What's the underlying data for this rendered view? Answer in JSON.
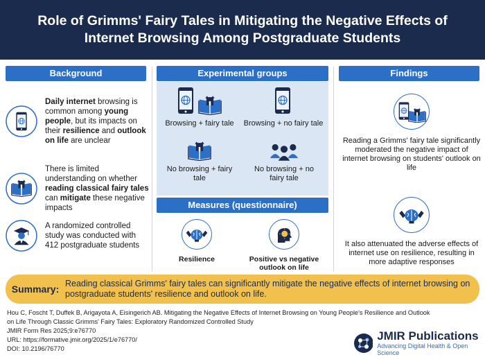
{
  "title": "Role of Grimms' Fairy Tales in Mitigating the Negative Effects of Internet Browsing Among Postgraduate Students",
  "colors": {
    "navy": "#1b2b4d",
    "accent_blue": "#2c6fc6",
    "panel": "#dbe6f4",
    "summary": "#f2c04d"
  },
  "background": {
    "heading": "Background",
    "items": [
      {
        "icon": "phone-globe-icon",
        "parts": [
          {
            "t": "Daily internet",
            "b": true
          },
          {
            "t": " browsing is common among ",
            "b": false
          },
          {
            "t": "young people",
            "b": true
          },
          {
            "t": ", but its impacts on their ",
            "b": false
          },
          {
            "t": "resilience",
            "b": true
          },
          {
            "t": " and ",
            "b": false
          },
          {
            "t": "outlook on life",
            "b": true
          },
          {
            "t": " are unclear",
            "b": false
          }
        ]
      },
      {
        "icon": "open-book-castle-icon",
        "parts": [
          {
            "t": "There is limited understanding on whether ",
            "b": false
          },
          {
            "t": "reading classical fairy tales",
            "b": true
          },
          {
            "t": " can ",
            "b": false
          },
          {
            "t": "mitigate",
            "b": true
          },
          {
            "t": " these negative impacts",
            "b": false
          }
        ]
      },
      {
        "icon": "graduate-icon",
        "parts": [
          {
            "t": "A randomized controlled study was conducted with 412 postgraduate students",
            "b": false
          }
        ]
      }
    ]
  },
  "experimental": {
    "heading": "Experimental groups",
    "groups": [
      {
        "label": "Browsing + fairy tale",
        "icons": [
          "phone-globe-icon",
          "open-book-castle-icon"
        ]
      },
      {
        "label": "Browsing + no fairy tale",
        "icons": [
          "phone-globe-icon"
        ]
      },
      {
        "label": "No browsing + fairy tale",
        "icons": [
          "open-book-castle-icon"
        ]
      },
      {
        "label": "No browsing + no fairy tale",
        "icons": [
          "group-people-icon"
        ]
      }
    ]
  },
  "measures": {
    "heading": "Measures (questionnaire)",
    "items": [
      {
        "label": "Resilience",
        "icon": "strong-brain-icon"
      },
      {
        "label": "Positive vs negative outlook on life",
        "icon": "head-sun-icon"
      }
    ]
  },
  "findings": {
    "heading": "Findings",
    "items": [
      {
        "icon": "phone-book-icon",
        "text": "Reading a Grimms' fairy tale significantly moderated the negative impact of internet browsing on students' outlook on life"
      },
      {
        "icon": "strong-brain-icon",
        "text": "It also attenuated the adverse effects of internet use on resilience, resulting in more adaptive responses"
      }
    ]
  },
  "summary": {
    "label": "Summary:",
    "text": "Reading classical Grimms' fairy tales can significantly mitigate the negative effects of internet browsing on postgraduate students' resilience and outlook on life."
  },
  "citation": {
    "lines": [
      "Hou C, Foscht T, Duffek B, Arigayota A, Eisingerich AB. Mitigating the Negative Effects of Internet Browsing on Young People's Resilience and Outlook",
      "on Life Through Classic Grimms' Fairy Tales: Exploratory Randomized Controlled Study",
      "JMIR Form Res 2025;9:e76770",
      "URL: https://formative.jmir.org/2025/1/e76770/",
      "DOI: 10.2196/76770"
    ]
  },
  "publisher": {
    "name": "JMIR Publications",
    "tagline": "Advancing Digital Health & Open Science"
  }
}
